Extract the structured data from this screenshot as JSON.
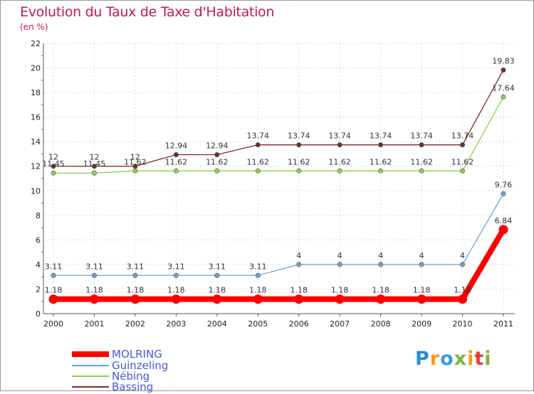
{
  "title": "Evolution du Taux de Taxe d'Habitation",
  "unit": "(en %)",
  "logo": {
    "letters": [
      "P",
      "r",
      "o",
      "x",
      "i",
      "t",
      "i"
    ],
    "colors": [
      "#2a8fd6",
      "#f39c12",
      "#3a9ad9",
      "#7cb342",
      "#f39c12",
      "#e53935",
      "#7cb342"
    ]
  },
  "chart_data": {
    "type": "line",
    "x": [
      "2000",
      "2001",
      "2002",
      "2003",
      "2004",
      "2005",
      "2006",
      "2007",
      "2008",
      "2009",
      "2010",
      "2011"
    ],
    "ylim": [
      0,
      22
    ],
    "yticks": [
      "0",
      "2",
      "4",
      "6",
      "8",
      "10",
      "12",
      "14",
      "16",
      "18",
      "20",
      "22"
    ],
    "grid": true,
    "legend_position": "bottom-left",
    "series": [
      {
        "name": "Bassing",
        "color": "#7a2a2a",
        "values": [
          12,
          12,
          12,
          12.94,
          12.94,
          13.74,
          13.74,
          13.74,
          13.74,
          13.74,
          13.74,
          19.83
        ],
        "labels": [
          "12",
          "12",
          "12",
          "12.94",
          "12.94",
          "13.74",
          "13.74",
          "13.74",
          "13.74",
          "13.74",
          "13.74",
          "19.83"
        ]
      },
      {
        "name": "Nébing",
        "color": "#8ed04a",
        "values": [
          11.45,
          11.45,
          11.62,
          11.62,
          11.62,
          11.62,
          11.62,
          11.62,
          11.62,
          11.62,
          11.62,
          17.64
        ],
        "labels": [
          "11.45",
          "11.45",
          "11.62",
          "11.62",
          "11.62",
          "11.62",
          "11.62",
          "11.62",
          "11.62",
          "11.62",
          "11.62",
          "17.64"
        ]
      },
      {
        "name": "Guinzeling",
        "color": "#6aa2d4",
        "values": [
          3.11,
          3.11,
          3.11,
          3.11,
          3.11,
          3.11,
          4,
          4,
          4,
          4,
          4,
          9.76
        ],
        "labels": [
          "3.11",
          "3.11",
          "3.11",
          "3.11",
          "3.11",
          "3.11",
          "4",
          "4",
          "4",
          "4",
          "4",
          "9.76"
        ]
      },
      {
        "name": "MOLRING",
        "color": "#ff0000",
        "values": [
          1.18,
          1.18,
          1.18,
          1.18,
          1.18,
          1.18,
          1.18,
          1.18,
          1.18,
          1.18,
          1.18,
          6.84
        ],
        "labels": [
          "1.18",
          "1.18",
          "1.18",
          "1.18",
          "1.18",
          "1.18",
          "1.18",
          "1.18",
          "1.18",
          "1.18",
          "1.18",
          "6.84"
        ]
      }
    ],
    "legend": [
      "MOLRING",
      "Guinzeling",
      "Nébing",
      "Bassing"
    ]
  }
}
